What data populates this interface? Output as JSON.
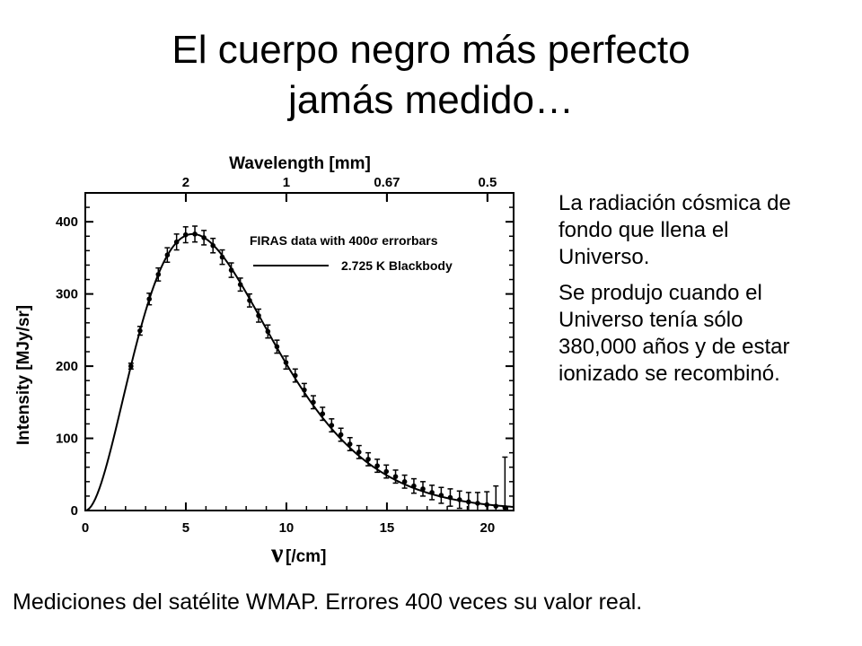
{
  "slide": {
    "title_line1": "El cuerpo negro más perfecto",
    "title_line2": "jamás medido…",
    "paragraph1": "La radiación cósmica de fondo que llena el Universo.",
    "paragraph2": "Se produjo cuando el Universo tenía sólo 380,000 años y de estar ionizado se recombinó.",
    "caption": "Mediciones del satélite WMAP. Errores 400 veces su valor real."
  },
  "chart_data": {
    "type": "scatter",
    "xlabel_symbol": "ν",
    "xlabel_unit": "[/cm]",
    "ylabel": "Intensity [MJy/sr]",
    "top_axis_label": "Wavelength [mm]",
    "xlim": [
      0,
      21.3
    ],
    "ylim": [
      0,
      440
    ],
    "x_ticks": [
      "0",
      "5",
      "10",
      "15",
      "20"
    ],
    "y_ticks": [
      "0",
      "100",
      "200",
      "300",
      "400"
    ],
    "top_ticks": [
      {
        "label": "2",
        "nu": 5
      },
      {
        "label": "1",
        "nu": 10
      },
      {
        "label": "0.67",
        "nu": 15
      },
      {
        "label": "0.5",
        "nu": 20
      }
    ],
    "legend": {
      "points_label": "FIRAS data with 400σ errorbars",
      "line_label": "2.725 K Blackbody"
    },
    "temperature_K": 2.725,
    "series": [
      {
        "x": [
          2.27,
          2.72,
          3.18,
          3.63,
          4.08,
          4.54,
          4.99,
          5.45,
          5.9,
          6.35,
          6.81,
          7.26,
          7.71,
          8.17,
          8.62,
          9.08,
          9.53,
          9.98,
          10.44,
          10.89,
          11.34,
          11.8,
          12.25,
          12.71,
          13.16,
          13.61,
          14.07,
          14.52,
          14.97,
          15.43,
          15.88,
          16.34,
          16.79,
          17.24,
          17.7,
          18.15,
          18.61,
          19.06,
          19.51,
          19.97,
          20.42,
          20.87
        ],
        "y": [
          200,
          249,
          293,
          327,
          354,
          372,
          382,
          383,
          378,
          367,
          351,
          333,
          313,
          291,
          270,
          248,
          227,
          205,
          187,
          167,
          150,
          134,
          118,
          105,
          92,
          81,
          71,
          62,
          54,
          47,
          40,
          34,
          30,
          25,
          21,
          18,
          15,
          12,
          10,
          8,
          6,
          4
        ],
        "error": [
          4,
          6,
          8,
          9,
          10,
          11,
          11,
          11,
          10,
          10,
          10,
          10,
          9,
          9,
          9,
          9,
          9,
          9,
          9,
          9,
          9,
          9,
          9,
          9,
          9,
          9,
          9,
          9,
          9,
          9,
          9,
          10,
          10,
          10,
          11,
          12,
          12,
          13,
          15,
          18,
          28,
          70
        ]
      }
    ]
  }
}
